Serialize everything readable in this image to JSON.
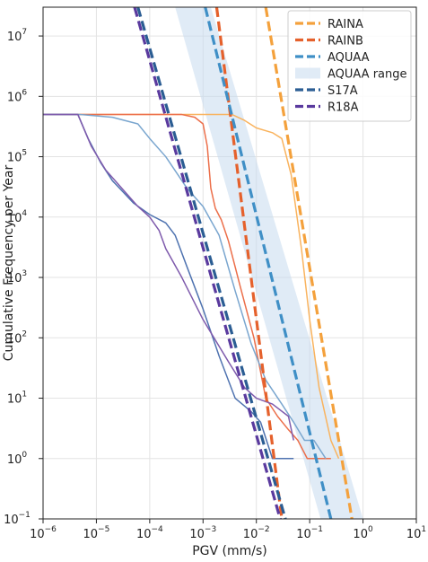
{
  "chart_data": {
    "type": "line",
    "xlabel": "PGV (mm/s)",
    "ylabel": "Cumulative Frequency per Year",
    "xscale": "log",
    "yscale": "log",
    "xlim": [
      1e-06,
      10
    ],
    "ylim": [
      0.1,
      30000000
    ],
    "grid": true,
    "legend_placement": "top-right",
    "x_ticks": [
      {
        "value": 1e-06,
        "base": "10",
        "exp": "−6"
      },
      {
        "value": 1e-05,
        "base": "10",
        "exp": "−5"
      },
      {
        "value": 0.0001,
        "base": "10",
        "exp": "−4"
      },
      {
        "value": 0.001,
        "base": "10",
        "exp": "−3"
      },
      {
        "value": 0.01,
        "base": "10",
        "exp": "−2"
      },
      {
        "value": 0.1,
        "base": "10",
        "exp": "−1"
      },
      {
        "value": 1,
        "base": "10",
        "exp": "0"
      },
      {
        "value": 10,
        "base": "10",
        "exp": "1"
      }
    ],
    "y_ticks": [
      {
        "value": 0.1,
        "base": "10",
        "exp": "−1"
      },
      {
        "value": 1,
        "base": "10",
        "exp": "0"
      },
      {
        "value": 10,
        "base": "10",
        "exp": "1"
      },
      {
        "value": 100,
        "base": "10",
        "exp": "2"
      },
      {
        "value": 1000,
        "base": "10",
        "exp": "3"
      },
      {
        "value": 10000,
        "base": "10",
        "exp": "4"
      },
      {
        "value": 100000,
        "base": "10",
        "exp": "5"
      },
      {
        "value": 1000000,
        "base": "10",
        "exp": "6"
      },
      {
        "value": 10000000,
        "base": "10",
        "exp": "7"
      }
    ],
    "band": {
      "name": "AQUAA range",
      "color": "#c6dbef",
      "lower": [
        [
          0.0003,
          30000000
        ],
        [
          0.16,
          0.1
        ]
      ],
      "upper": [
        [
          0.0014,
          30000000
        ],
        [
          1.0,
          0.1
        ]
      ]
    },
    "series": [
      {
        "name": "RAINA",
        "style": "dashed",
        "color": "#f4a13c",
        "points": [
          [
            0.015,
            30000000
          ],
          [
            0.62,
            0.1
          ]
        ]
      },
      {
        "name": "RAINB",
        "style": "dashed",
        "color": "#e5612c",
        "points": [
          [
            0.0018,
            30000000
          ],
          [
            0.03,
            0.1
          ]
        ]
      },
      {
        "name": "AQUAA",
        "style": "dashed",
        "color": "#3f8fc6",
        "points": [
          [
            0.0011,
            30000000
          ],
          [
            0.25,
            0.1
          ]
        ]
      },
      {
        "name": "S17A",
        "style": "dashed",
        "color": "#2b5d93",
        "points": [
          [
            6e-05,
            30000000
          ],
          [
            0.035,
            0.1
          ]
        ]
      },
      {
        "name": "R18A",
        "style": "dashed",
        "color": "#5a3a9e",
        "points": [
          [
            5.2e-05,
            30000000
          ],
          [
            0.028,
            0.1
          ]
        ]
      },
      {
        "style": "solid",
        "color": "#f9b35e",
        "points": [
          [
            1e-06,
            500000
          ],
          [
            0.0035,
            500000
          ],
          [
            0.006,
            400000
          ],
          [
            0.01,
            300000
          ],
          [
            0.02,
            250000
          ],
          [
            0.03,
            200000
          ],
          [
            0.045,
            50000
          ],
          [
            0.07,
            3000
          ],
          [
            0.1,
            200
          ],
          [
            0.15,
            15
          ],
          [
            0.25,
            2
          ],
          [
            0.35,
            1
          ]
        ]
      },
      {
        "style": "solid",
        "color": "#ec6f4a",
        "points": [
          [
            1e-06,
            500000
          ],
          [
            0.0004,
            500000
          ],
          [
            0.0007,
            450000
          ],
          [
            0.001,
            350000
          ],
          [
            0.0012,
            150000
          ],
          [
            0.0014,
            30000
          ],
          [
            0.0017,
            14000
          ],
          [
            0.0022,
            9000
          ],
          [
            0.003,
            4000
          ],
          [
            0.005,
            700
          ],
          [
            0.009,
            100
          ],
          [
            0.015,
            10
          ],
          [
            0.025,
            5
          ],
          [
            0.04,
            3
          ],
          [
            0.06,
            2
          ],
          [
            0.09,
            1
          ],
          [
            0.15,
            1
          ],
          [
            0.25,
            1
          ]
        ]
      },
      {
        "style": "solid",
        "color": "#7aa6cf",
        "points": [
          [
            1e-06,
            500000
          ],
          [
            5e-06,
            500000
          ],
          [
            2e-05,
            450000
          ],
          [
            6e-05,
            350000
          ],
          [
            0.0001,
            200000
          ],
          [
            0.0002,
            100000
          ],
          [
            0.0005,
            30000
          ],
          [
            0.001,
            15000
          ],
          [
            0.002,
            5000
          ],
          [
            0.004,
            600
          ],
          [
            0.008,
            80
          ],
          [
            0.015,
            20
          ],
          [
            0.03,
            8
          ],
          [
            0.05,
            4
          ],
          [
            0.08,
            2
          ],
          [
            0.12,
            2
          ],
          [
            0.2,
            1
          ]
        ]
      },
      {
        "style": "solid",
        "color": "#4f73b0",
        "points": [
          [
            1e-06,
            500000
          ],
          [
            4.5e-06,
            500000
          ],
          [
            7e-06,
            200000
          ],
          [
            1.2e-05,
            80000
          ],
          [
            2e-05,
            40000
          ],
          [
            5e-05,
            17000
          ],
          [
            0.0001,
            11000
          ],
          [
            0.0002,
            8000
          ],
          [
            0.0003,
            5000
          ],
          [
            0.0005,
            1500
          ],
          [
            0.001,
            300
          ],
          [
            0.002,
            50
          ],
          [
            0.004,
            10
          ],
          [
            0.008,
            6
          ],
          [
            0.012,
            4
          ],
          [
            0.02,
            1
          ],
          [
            0.05,
            1
          ]
        ]
      },
      {
        "style": "solid",
        "color": "#7e5aac",
        "points": [
          [
            1e-06,
            500000
          ],
          [
            4.5e-06,
            500000
          ],
          [
            8e-06,
            150000
          ],
          [
            1.5e-05,
            60000
          ],
          [
            3e-05,
            30000
          ],
          [
            6e-05,
            15000
          ],
          [
            0.0001,
            10000
          ],
          [
            0.00015,
            6000
          ],
          [
            0.0002,
            3000
          ],
          [
            0.0004,
            1000
          ],
          [
            0.001,
            200
          ],
          [
            0.003,
            40
          ],
          [
            0.006,
            15
          ],
          [
            0.01,
            10
          ],
          [
            0.02,
            8
          ],
          [
            0.04,
            5
          ],
          [
            0.05,
            2
          ]
        ]
      }
    ]
  }
}
